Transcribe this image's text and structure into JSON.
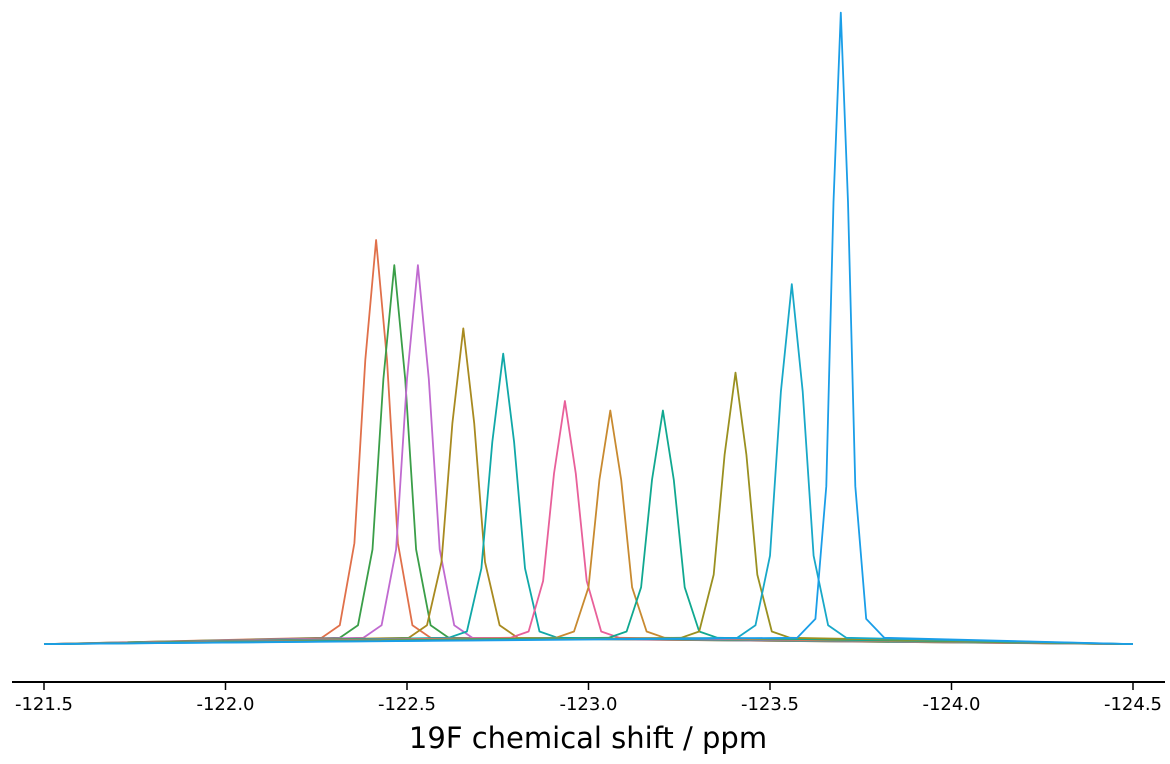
{
  "chart_data": {
    "type": "line",
    "xlabel": "19F chemical shift / ppm",
    "xlim": [
      -121.5,
      -124.5
    ],
    "xticks": [
      -121.5,
      {
        "value": -122,
        "label": "-122.0"
      },
      -122.5,
      {
        "value": -123,
        "label": "-123.0"
      },
      -123.5,
      {
        "value": -124,
        "label": "-124.0"
      },
      -124.5
    ],
    "ylim": [
      -6,
      102
    ],
    "series": [
      {
        "color": "#e0704a",
        "x": [
          -121.5,
          -122.265,
          -122.315,
          -122.355,
          -122.385,
          -122.415,
          -122.445,
          -122.475,
          -122.515,
          -122.565,
          -124.5
        ],
        "values": [
          0,
          1,
          3,
          16,
          45,
          64,
          45,
          16,
          3,
          1,
          0
        ]
      },
      {
        "color": "#3a9e48",
        "x": [
          -121.5,
          -122.315,
          -122.365,
          -122.405,
          -122.435,
          -122.465,
          -122.495,
          -122.525,
          -122.565,
          -122.615,
          -124.5
        ],
        "values": [
          0,
          1,
          3,
          15,
          42,
          60,
          42,
          15,
          3,
          1,
          0
        ]
      },
      {
        "color": "#c06ad0",
        "x": [
          -121.5,
          -122.38,
          -122.43,
          -122.47,
          -122.5,
          -122.53,
          -122.56,
          -122.59,
          -122.63,
          -122.68,
          -124.5
        ],
        "values": [
          0,
          1,
          3,
          15,
          42,
          60,
          42,
          15,
          3,
          1,
          0
        ]
      },
      {
        "color": "#a88a20",
        "x": [
          -121.5,
          -122.505,
          -122.555,
          -122.595,
          -122.625,
          -122.655,
          -122.685,
          -122.715,
          -122.755,
          -122.805,
          -124.5
        ],
        "values": [
          0,
          1,
          3,
          13,
          35,
          50,
          35,
          13,
          3,
          1,
          0
        ]
      },
      {
        "color": "#10a8a8",
        "x": [
          -121.5,
          -122.615,
          -122.665,
          -122.705,
          -122.735,
          -122.765,
          -122.795,
          -122.825,
          -122.865,
          -122.915,
          -124.5
        ],
        "values": [
          0,
          1,
          2,
          12,
          32,
          46,
          32,
          12,
          2,
          1,
          0
        ]
      },
      {
        "color": "#e8609a",
        "x": [
          -121.5,
          -122.785,
          -122.835,
          -122.875,
          -122.905,
          -122.935,
          -122.965,
          -122.995,
          -123.035,
          -123.085,
          -124.5
        ],
        "values": [
          0,
          1,
          2,
          10,
          27,
          38.5,
          27,
          10,
          2,
          1,
          0
        ]
      },
      {
        "color": "#c88a30",
        "x": [
          -121.5,
          -122.91,
          -122.96,
          -123.0,
          -123.03,
          -123.06,
          -123.09,
          -123.12,
          -123.16,
          -123.21,
          -124.5
        ],
        "values": [
          0,
          1,
          2,
          9,
          26,
          37,
          26,
          9,
          2,
          1,
          0
        ]
      },
      {
        "color": "#10a890",
        "x": [
          -121.5,
          -123.055,
          -123.105,
          -123.145,
          -123.175,
          -123.205,
          -123.235,
          -123.265,
          -123.305,
          -123.355,
          -124.5
        ],
        "values": [
          0,
          1,
          2,
          9,
          26,
          37,
          26,
          9,
          2,
          1,
          0
        ]
      },
      {
        "color": "#9a9020",
        "x": [
          -121.5,
          -123.255,
          -123.305,
          -123.345,
          -123.375,
          -123.405,
          -123.435,
          -123.465,
          -123.505,
          -123.555,
          -124.5
        ],
        "values": [
          0,
          1,
          2,
          11,
          30,
          43,
          30,
          11,
          2,
          1,
          0
        ]
      },
      {
        "color": "#18a8c8",
        "x": [
          -121.5,
          -123.41,
          -123.46,
          -123.5,
          -123.53,
          -123.56,
          -123.59,
          -123.62,
          -123.66,
          -123.71,
          -124.5
        ],
        "values": [
          0,
          1,
          3,
          14,
          40,
          57,
          40,
          14,
          3,
          1,
          0
        ]
      },
      {
        "color": "#1a9ee8",
        "x": [
          -121.5,
          -123.575,
          -123.625,
          -123.655,
          -123.675,
          -123.695,
          -123.715,
          -123.735,
          -123.765,
          -123.815,
          -124.5
        ],
        "values": [
          0,
          1,
          4,
          25,
          70,
          100,
          70,
          25,
          4,
          1,
          0
        ]
      }
    ]
  }
}
